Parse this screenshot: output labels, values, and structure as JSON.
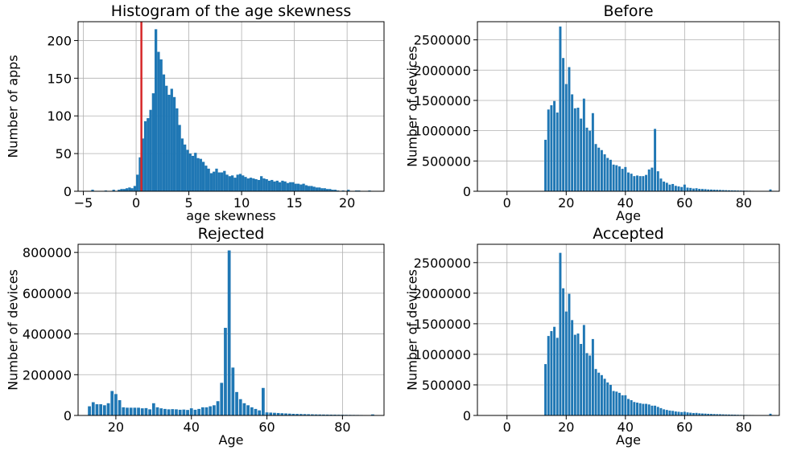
{
  "style": {
    "bar_color": "#1f77b4",
    "marker_color": "#d62728",
    "grid_color": "#b0b0b0"
  },
  "chart_data": [
    {
      "type": "bar",
      "title": "Histogram of the age skewness",
      "xlabel": "age skewness",
      "ylabel": "Number of apps",
      "xlim": [
        -5.5,
        23.5
      ],
      "ylim": [
        0,
        225
      ],
      "xticks": [
        -5,
        0,
        5,
        10,
        15,
        20
      ],
      "yticks": [
        0,
        50,
        100,
        150,
        200
      ],
      "grid": true,
      "vline": 0.5,
      "bin_width": 0.25,
      "bins": [
        [
          -4.25,
          2
        ],
        [
          -3.0,
          1
        ],
        [
          -2.25,
          2
        ],
        [
          -1.75,
          2
        ],
        [
          -1.5,
          3
        ],
        [
          -1.25,
          3
        ],
        [
          -1.0,
          4
        ],
        [
          -0.75,
          5
        ],
        [
          -0.5,
          4
        ],
        [
          -0.25,
          7
        ],
        [
          0.0,
          22
        ],
        [
          0.25,
          45
        ],
        [
          0.5,
          70
        ],
        [
          0.75,
          93
        ],
        [
          1.0,
          97
        ],
        [
          1.25,
          108
        ],
        [
          1.5,
          130
        ],
        [
          1.75,
          215
        ],
        [
          2.0,
          185
        ],
        [
          2.25,
          175
        ],
        [
          2.5,
          155
        ],
        [
          2.75,
          140
        ],
        [
          3.0,
          128
        ],
        [
          3.25,
          136
        ],
        [
          3.5,
          125
        ],
        [
          3.75,
          110
        ],
        [
          4.0,
          88
        ],
        [
          4.25,
          70
        ],
        [
          4.5,
          62
        ],
        [
          4.75,
          55
        ],
        [
          5.0,
          50
        ],
        [
          5.25,
          47
        ],
        [
          5.5,
          51
        ],
        [
          5.75,
          44
        ],
        [
          6.0,
          43
        ],
        [
          6.25,
          39
        ],
        [
          6.5,
          34
        ],
        [
          6.75,
          30
        ],
        [
          7.0,
          24
        ],
        [
          7.25,
          26
        ],
        [
          7.5,
          30
        ],
        [
          7.75,
          25
        ],
        [
          8.0,
          25
        ],
        [
          8.25,
          27
        ],
        [
          8.5,
          22
        ],
        [
          8.75,
          20
        ],
        [
          9.0,
          21
        ],
        [
          9.25,
          18
        ],
        [
          9.5,
          22
        ],
        [
          9.75,
          23
        ],
        [
          10.0,
          21
        ],
        [
          10.25,
          19
        ],
        [
          10.5,
          17
        ],
        [
          10.75,
          18
        ],
        [
          11.0,
          17
        ],
        [
          11.25,
          16
        ],
        [
          11.5,
          15
        ],
        [
          11.75,
          20
        ],
        [
          12.0,
          17
        ],
        [
          12.25,
          16
        ],
        [
          12.5,
          14
        ],
        [
          12.75,
          15
        ],
        [
          13.0,
          13
        ],
        [
          13.25,
          14
        ],
        [
          13.5,
          12
        ],
        [
          13.75,
          14
        ],
        [
          14.0,
          13
        ],
        [
          14.25,
          11
        ],
        [
          14.5,
          12
        ],
        [
          14.75,
          12
        ],
        [
          15.0,
          10
        ],
        [
          15.25,
          10
        ],
        [
          15.5,
          9
        ],
        [
          15.75,
          10
        ],
        [
          16.0,
          8
        ],
        [
          16.25,
          7
        ],
        [
          16.5,
          7
        ],
        [
          16.75,
          6
        ],
        [
          17.0,
          5
        ],
        [
          17.25,
          5
        ],
        [
          17.5,
          4
        ],
        [
          17.75,
          4
        ],
        [
          18.0,
          3
        ],
        [
          18.25,
          3
        ],
        [
          18.5,
          2
        ],
        [
          18.75,
          2
        ],
        [
          19.0,
          1
        ],
        [
          19.5,
          1
        ],
        [
          20.0,
          2
        ],
        [
          20.75,
          1
        ],
        [
          21.0,
          1
        ],
        [
          22.0,
          1
        ]
      ]
    },
    {
      "type": "bar",
      "title": "Before",
      "xlabel": "Age",
      "ylabel": "Number of devices",
      "xlim": [
        -10,
        92
      ],
      "ylim": [
        0,
        2800000
      ],
      "xticks": [
        0,
        20,
        40,
        60,
        80
      ],
      "yticks": [
        0,
        500000,
        1000000,
        1500000,
        2000000,
        2500000
      ],
      "grid": true,
      "x": [
        13,
        14,
        15,
        16,
        17,
        18,
        19,
        20,
        21,
        22,
        23,
        24,
        25,
        26,
        27,
        28,
        29,
        30,
        31,
        32,
        33,
        34,
        35,
        36,
        37,
        38,
        39,
        40,
        41,
        42,
        43,
        44,
        45,
        46,
        47,
        48,
        49,
        50,
        51,
        52,
        53,
        54,
        55,
        56,
        57,
        58,
        59,
        60,
        61,
        62,
        63,
        64,
        65,
        66,
        67,
        68,
        69,
        70,
        71,
        72,
        73,
        74,
        75,
        76,
        77,
        78,
        79,
        80,
        81,
        82,
        83,
        84,
        85,
        86,
        87,
        88,
        89
      ],
      "values": [
        850000,
        1350000,
        1420000,
        1490000,
        1300000,
        2720000,
        2200000,
        1770000,
        2050000,
        1600000,
        1370000,
        1380000,
        1200000,
        1530000,
        1050000,
        1000000,
        1290000,
        780000,
        720000,
        680000,
        610000,
        550000,
        520000,
        440000,
        430000,
        410000,
        370000,
        400000,
        310000,
        290000,
        250000,
        260000,
        250000,
        250000,
        270000,
        360000,
        390000,
        1030000,
        330000,
        210000,
        160000,
        140000,
        110000,
        120000,
        90000,
        80000,
        70000,
        110000,
        60000,
        55000,
        45000,
        50000,
        40000,
        38000,
        35000,
        30000,
        28000,
        26000,
        24000,
        22000,
        20000,
        18000,
        16000,
        15000,
        14000,
        12000,
        11000,
        10000,
        9000,
        8000,
        7000,
        6000,
        6000,
        5000,
        5000,
        4000,
        30000
      ]
    },
    {
      "type": "bar",
      "title": "Rejected",
      "xlabel": "Age",
      "ylabel": "Number of devices",
      "xlim": [
        10,
        91
      ],
      "ylim": [
        0,
        840000
      ],
      "xticks": [
        20,
        40,
        60,
        80
      ],
      "yticks": [
        0,
        200000,
        400000,
        600000,
        800000
      ],
      "grid": true,
      "x": [
        13,
        14,
        15,
        16,
        17,
        18,
        19,
        20,
        21,
        22,
        23,
        24,
        25,
        26,
        27,
        28,
        29,
        30,
        31,
        32,
        33,
        34,
        35,
        36,
        37,
        38,
        39,
        40,
        41,
        42,
        43,
        44,
        45,
        46,
        47,
        48,
        49,
        50,
        51,
        52,
        53,
        54,
        55,
        56,
        57,
        58,
        59,
        60,
        61,
        62,
        63,
        64,
        65,
        66,
        67,
        68,
        69,
        70,
        71,
        72,
        73,
        74,
        75,
        76,
        77,
        78,
        79,
        80,
        81,
        82,
        83,
        84,
        85,
        86,
        87,
        88
      ],
      "values": [
        45000,
        65000,
        55000,
        55000,
        50000,
        60000,
        120000,
        105000,
        75000,
        40000,
        38000,
        38000,
        38000,
        38000,
        35000,
        36000,
        30000,
        60000,
        40000,
        35000,
        32000,
        30000,
        31000,
        30000,
        28000,
        29000,
        27000,
        35000,
        28000,
        32000,
        40000,
        40000,
        45000,
        50000,
        70000,
        160000,
        430000,
        810000,
        235000,
        115000,
        80000,
        60000,
        50000,
        40000,
        32000,
        25000,
        135000,
        15000,
        14000,
        13000,
        12000,
        11000,
        10000,
        9000,
        8000,
        7500,
        7000,
        6500,
        6000,
        5500,
        5000,
        4800,
        4500,
        4200,
        4000,
        3800,
        3500,
        3300,
        3000,
        2800,
        2600,
        2400,
        2200,
        2000,
        1800,
        5000
      ]
    },
    {
      "type": "bar",
      "title": "Accepted",
      "xlabel": "Age",
      "ylabel": "Number of devices",
      "xlim": [
        -10,
        92
      ],
      "ylim": [
        0,
        2800000
      ],
      "xticks": [
        0,
        20,
        40,
        60,
        80
      ],
      "yticks": [
        0,
        500000,
        1000000,
        1500000,
        2000000,
        2500000
      ],
      "grid": true,
      "x": [
        13,
        14,
        15,
        16,
        17,
        18,
        19,
        20,
        21,
        22,
        23,
        24,
        25,
        26,
        27,
        28,
        29,
        30,
        31,
        32,
        33,
        34,
        35,
        36,
        37,
        38,
        39,
        40,
        41,
        42,
        43,
        44,
        45,
        46,
        47,
        48,
        49,
        50,
        51,
        52,
        53,
        54,
        55,
        56,
        57,
        58,
        59,
        60,
        61,
        62,
        63,
        64,
        65,
        66,
        67,
        68,
        69,
        70,
        71,
        72,
        73,
        74,
        75,
        76,
        77,
        78,
        79,
        80,
        81,
        82,
        83,
        84,
        85,
        86,
        87,
        88,
        89
      ],
      "values": [
        840000,
        1300000,
        1380000,
        1450000,
        1270000,
        2660000,
        2080000,
        1700000,
        1990000,
        1560000,
        1320000,
        1340000,
        1170000,
        1480000,
        1020000,
        980000,
        1250000,
        760000,
        700000,
        660000,
        600000,
        540000,
        500000,
        400000,
        390000,
        370000,
        330000,
        330000,
        270000,
        250000,
        220000,
        210000,
        200000,
        190000,
        190000,
        180000,
        160000,
        160000,
        140000,
        120000,
        100000,
        90000,
        80000,
        75000,
        65000,
        60000,
        55000,
        60000,
        50000,
        45000,
        40000,
        42000,
        35000,
        32000,
        30000,
        27000,
        25000,
        23000,
        21000,
        20000,
        18000,
        16000,
        15000,
        14000,
        13000,
        11000,
        10000,
        9000,
        8000,
        7500,
        7000,
        6000,
        5500,
        5000,
        5000,
        4000,
        28000
      ]
    }
  ]
}
